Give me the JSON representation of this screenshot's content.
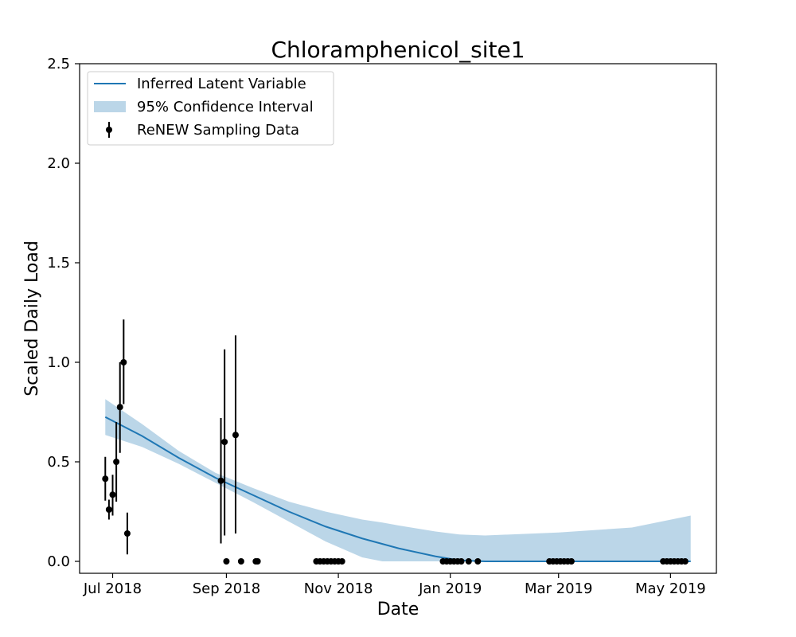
{
  "chart_data": {
    "type": "line",
    "title": "Chloramphenicol_site1",
    "xlabel": "Date",
    "ylabel": "Scaled Daily Load",
    "xlim": [
      "2018-06-13",
      "2019-05-26"
    ],
    "ylim": [
      -0.06,
      2.5
    ],
    "x_ticks": [
      {
        "date": "2018-07-01",
        "label": "Jul 2018"
      },
      {
        "date": "2018-09-01",
        "label": "Sep 2018"
      },
      {
        "date": "2018-11-01",
        "label": "Nov 2018"
      },
      {
        "date": "2019-01-01",
        "label": "Jan 2019"
      },
      {
        "date": "2019-03-01",
        "label": "Mar 2019"
      },
      {
        "date": "2019-05-01",
        "label": "May 2019"
      }
    ],
    "y_ticks": [
      {
        "value": 0.0,
        "label": "0.0"
      },
      {
        "value": 0.5,
        "label": "0.5"
      },
      {
        "value": 1.0,
        "label": "1.0"
      },
      {
        "value": 1.5,
        "label": "1.5"
      },
      {
        "value": 2.0,
        "label": "2.0"
      },
      {
        "value": 2.5,
        "label": "2.5"
      }
    ],
    "grid": false,
    "legend": {
      "placement": "top-left",
      "entries": [
        {
          "label": "Inferred Latent Variable",
          "kind": "line",
          "color": "#1f77b4"
        },
        {
          "label": "95% Confidence Interval",
          "kind": "band",
          "color": "#1f77b4"
        },
        {
          "label": "ReNEW Sampling Data",
          "kind": "errorbar",
          "color": "#000000"
        }
      ]
    },
    "series": [
      {
        "name": "Inferred Latent Variable",
        "kind": "line",
        "color": "#1f77b4",
        "x": [
          "2018-06-27",
          "2018-07-17",
          "2018-08-06",
          "2018-08-26",
          "2018-09-15",
          "2018-10-05",
          "2018-10-25",
          "2018-11-14",
          "2018-12-04",
          "2018-12-24",
          "2019-01-06",
          "2019-01-20",
          "2019-03-01",
          "2019-04-10",
          "2019-05-12"
        ],
        "y": [
          0.725,
          0.63,
          0.52,
          0.42,
          0.335,
          0.25,
          0.175,
          0.115,
          0.065,
          0.025,
          0.005,
          0.0,
          0.0,
          0.0,
          0.0
        ]
      },
      {
        "name": "95% Confidence Interval",
        "kind": "band",
        "color": "#1f77b4",
        "opacity": 0.3,
        "x": [
          "2018-06-27",
          "2018-07-17",
          "2018-08-06",
          "2018-08-26",
          "2018-09-15",
          "2018-10-05",
          "2018-10-25",
          "2018-11-14",
          "2018-11-25",
          "2018-12-04",
          "2018-12-24",
          "2019-01-06",
          "2019-01-20",
          "2019-03-01",
          "2019-04-10",
          "2019-05-12"
        ],
        "lower": [
          0.635,
          0.575,
          0.49,
          0.395,
          0.3,
          0.2,
          0.1,
          0.02,
          0.0,
          0.0,
          0.0,
          0.0,
          0.0,
          0.0,
          0.0,
          0.0
        ],
        "upper": [
          0.815,
          0.69,
          0.555,
          0.445,
          0.37,
          0.3,
          0.25,
          0.21,
          0.195,
          0.18,
          0.15,
          0.135,
          0.13,
          0.145,
          0.17,
          0.23
        ]
      },
      {
        "name": "ReNEW Sampling Data",
        "kind": "errorbar",
        "color": "#000000",
        "points": [
          {
            "x": "2018-06-27",
            "y": 0.415,
            "lo": 0.305,
            "hi": 0.525
          },
          {
            "x": "2018-06-29",
            "y": 0.26,
            "lo": 0.21,
            "hi": 0.31
          },
          {
            "x": "2018-07-01",
            "y": 0.335,
            "lo": 0.23,
            "hi": 0.435
          },
          {
            "x": "2018-07-03",
            "y": 0.5,
            "lo": 0.3,
            "hi": 0.7
          },
          {
            "x": "2018-07-05",
            "y": 0.775,
            "lo": 0.545,
            "hi": 1.0
          },
          {
            "x": "2018-07-07",
            "y": 1.0,
            "lo": 0.79,
            "hi": 1.215
          },
          {
            "x": "2018-07-09",
            "y": 0.14,
            "lo": 0.035,
            "hi": 0.245
          },
          {
            "x": "2018-08-29",
            "y": 0.405,
            "lo": 0.09,
            "hi": 0.72
          },
          {
            "x": "2018-08-31",
            "y": 0.6,
            "lo": 0.13,
            "hi": 1.065
          },
          {
            "x": "2018-09-01",
            "y": 0.0
          },
          {
            "x": "2018-09-06",
            "y": 0.635,
            "lo": 0.14,
            "hi": 1.135
          },
          {
            "x": "2018-09-09",
            "y": 0.0
          },
          {
            "x": "2018-09-17",
            "y": 0.0
          },
          {
            "x": "2018-09-18",
            "y": 0.0
          },
          {
            "x": "2018-10-20",
            "y": 0.0
          },
          {
            "x": "2018-10-22",
            "y": 0.0
          },
          {
            "x": "2018-10-24",
            "y": 0.0
          },
          {
            "x": "2018-10-26",
            "y": 0.0
          },
          {
            "x": "2018-10-28",
            "y": 0.0
          },
          {
            "x": "2018-10-30",
            "y": 0.0
          },
          {
            "x": "2018-11-01",
            "y": 0.0
          },
          {
            "x": "2018-11-03",
            "y": 0.0
          },
          {
            "x": "2018-12-28",
            "y": 0.0
          },
          {
            "x": "2018-12-30",
            "y": 0.0
          },
          {
            "x": "2019-01-01",
            "y": 0.0
          },
          {
            "x": "2019-01-03",
            "y": 0.0
          },
          {
            "x": "2019-01-05",
            "y": 0.0
          },
          {
            "x": "2019-01-07",
            "y": 0.0
          },
          {
            "x": "2019-01-11",
            "y": 0.0
          },
          {
            "x": "2019-01-16",
            "y": 0.0
          },
          {
            "x": "2019-02-24",
            "y": 0.0
          },
          {
            "x": "2019-02-26",
            "y": 0.0
          },
          {
            "x": "2019-02-28",
            "y": 0.0
          },
          {
            "x": "2019-03-02",
            "y": 0.0
          },
          {
            "x": "2019-03-04",
            "y": 0.0
          },
          {
            "x": "2019-03-06",
            "y": 0.0
          },
          {
            "x": "2019-03-08",
            "y": 0.0
          },
          {
            "x": "2019-04-27",
            "y": 0.0
          },
          {
            "x": "2019-04-29",
            "y": 0.0
          },
          {
            "x": "2019-05-01",
            "y": 0.0
          },
          {
            "x": "2019-05-03",
            "y": 0.0
          },
          {
            "x": "2019-05-05",
            "y": 0.0
          },
          {
            "x": "2019-05-07",
            "y": 0.0
          },
          {
            "x": "2019-05-09",
            "y": 0.0
          }
        ]
      }
    ]
  }
}
